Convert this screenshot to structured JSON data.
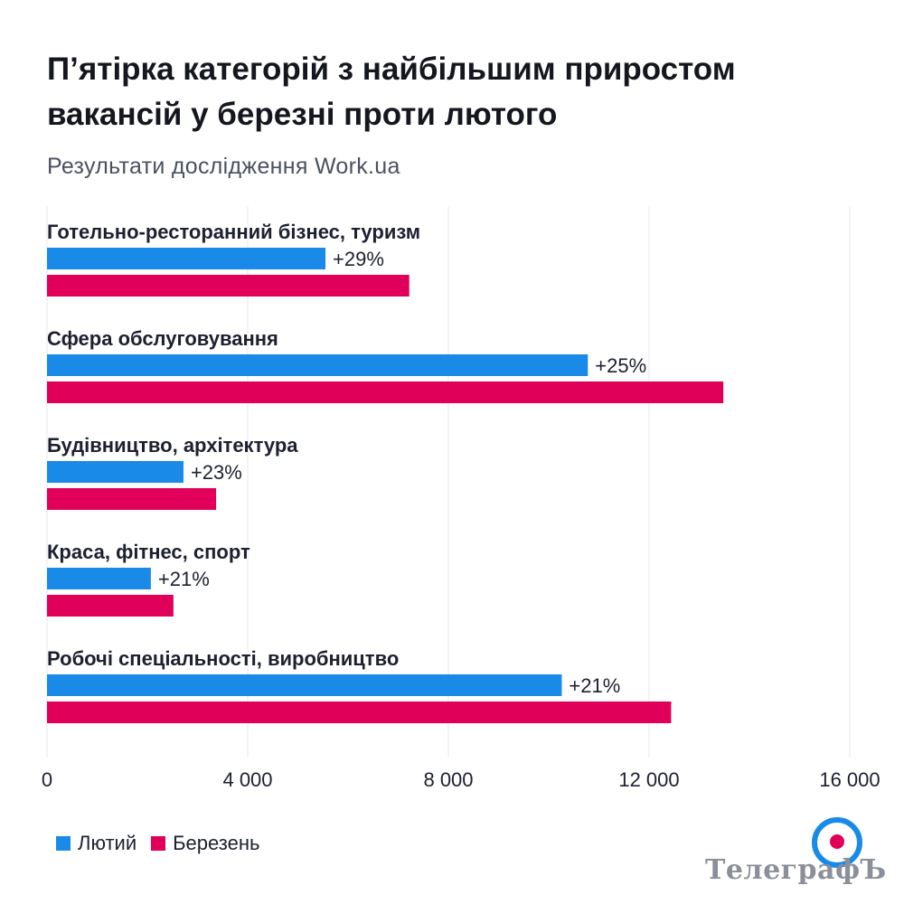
{
  "chart_data": {
    "type": "bar",
    "orientation": "horizontal",
    "title": "П’ятірка категорій з найбільшим приростом вакансій у березні проти лютого",
    "subtitle": "Результати дослідження Work.ua",
    "categories": [
      "Готельно-ресторанний бізнес, туризм",
      "Сфера обслуговування",
      "Будівництво, архітектура",
      "Краса, фітнес, спорт",
      "Робочі спеціальності, виробництво"
    ],
    "series": [
      {
        "name": "Лютий",
        "color": "#1a8ae8",
        "values": [
          5550,
          10780,
          2720,
          2070,
          10260
        ]
      },
      {
        "name": "Березень",
        "color": "#e0005a",
        "values": [
          7220,
          13480,
          3370,
          2520,
          12440
        ]
      }
    ],
    "growth_labels": [
      "+29%",
      "+25%",
      "+23%",
      "+21%",
      "+21%"
    ],
    "xlim": [
      0,
      16000
    ],
    "xticks": [
      0,
      4000,
      8000,
      12000,
      16000
    ],
    "xtick_labels": [
      "0",
      "4 000",
      "8 000",
      "12 000",
      "16 000"
    ],
    "grid": true,
    "legend_position": "bottom-left"
  },
  "logo": {
    "name": "ТелеграфЪ",
    "icon": "target-icon"
  }
}
